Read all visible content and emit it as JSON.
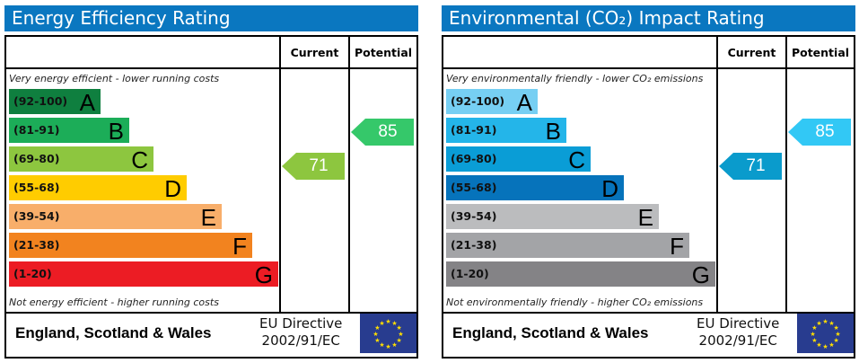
{
  "panels": [
    {
      "title": "Energy Efficiency Rating",
      "col_current": "Current",
      "col_potential": "Potential",
      "top_note": "Very energy efficient - lower running costs",
      "bottom_note": "Not energy efficient - higher running costs",
      "footer_region": "England, Scotland & Wales",
      "footer_directive_1": "EU Directive",
      "footer_directive_2": "2002/91/EC",
      "flag_icon": "eu-flag-icon",
      "bands": [
        {
          "range": "(92-100)",
          "letter": "A",
          "color": "#0f7f3f"
        },
        {
          "range": "(81-91)",
          "letter": "B",
          "color": "#1cad58"
        },
        {
          "range": "(69-80)",
          "letter": "C",
          "color": "#8dc63f"
        },
        {
          "range": "(55-68)",
          "letter": "D",
          "color": "#ffcc00"
        },
        {
          "range": "(39-54)",
          "letter": "E",
          "color": "#f8ae6a"
        },
        {
          "range": "(21-38)",
          "letter": "F",
          "color": "#f2831f"
        },
        {
          "range": "(1-20)",
          "letter": "G",
          "color": "#ec1c24"
        }
      ],
      "current": {
        "value": "71",
        "color": "#8dc63f"
      },
      "potential": {
        "value": "85",
        "color": "#35c86a"
      }
    },
    {
      "title": "Environmental (CO₂) Impact Rating",
      "col_current": "Current",
      "col_potential": "Potential",
      "top_note": "Very environmentally friendly - lower CO₂ emissions",
      "bottom_note": "Not environmentally friendly - higher CO₂ emissions",
      "footer_region": "England, Scotland & Wales",
      "footer_directive_1": "EU Directive",
      "footer_directive_2": "2002/91/EC",
      "flag_icon": "eu-flag-icon",
      "bands": [
        {
          "range": "(92-100)",
          "letter": "A",
          "color": "#76cff3"
        },
        {
          "range": "(81-91)",
          "letter": "B",
          "color": "#24b5e9"
        },
        {
          "range": "(69-80)",
          "letter": "C",
          "color": "#0a9dd6"
        },
        {
          "range": "(55-68)",
          "letter": "D",
          "color": "#0673bb"
        },
        {
          "range": "(39-54)",
          "letter": "E",
          "color": "#bbbcbe"
        },
        {
          "range": "(21-38)",
          "letter": "F",
          "color": "#a3a4a7"
        },
        {
          "range": "(1-20)",
          "letter": "G",
          "color": "#848386"
        }
      ],
      "current": {
        "value": "71",
        "color": "#0a9bcc"
      },
      "potential": {
        "value": "85",
        "color": "#32c8f5"
      }
    }
  ]
}
